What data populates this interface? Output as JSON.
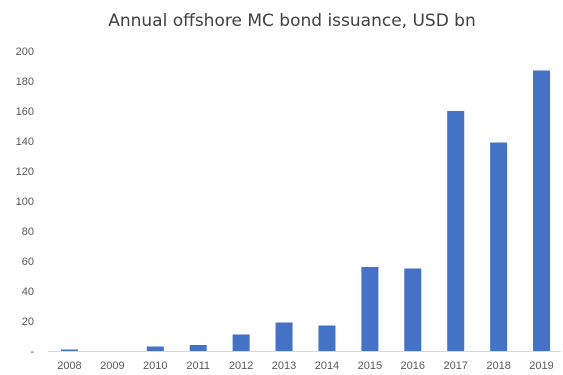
{
  "chart_data": {
    "type": "bar",
    "title": "Annual offshore MC bond issuance,  USD bn",
    "xlabel": "",
    "ylabel": "",
    "categories": [
      "2008",
      "2009",
      "2010",
      "2011",
      "2012",
      "2013",
      "2014",
      "2015",
      "2016",
      "2017",
      "2018",
      "2019"
    ],
    "values": [
      1,
      0,
      3,
      4,
      11,
      19,
      17,
      56,
      55,
      160,
      139,
      187
    ],
    "ylim": [
      0,
      200
    ],
    "yticks": [
      0,
      20,
      40,
      60,
      80,
      100,
      120,
      140,
      160,
      180,
      200
    ],
    "ytick_labels": [
      "-",
      "20",
      "40",
      "60",
      "80",
      "100",
      "120",
      "140",
      "160",
      "180",
      "200"
    ],
    "grid": false,
    "legend": "none",
    "bar_color": "#4472C4"
  }
}
